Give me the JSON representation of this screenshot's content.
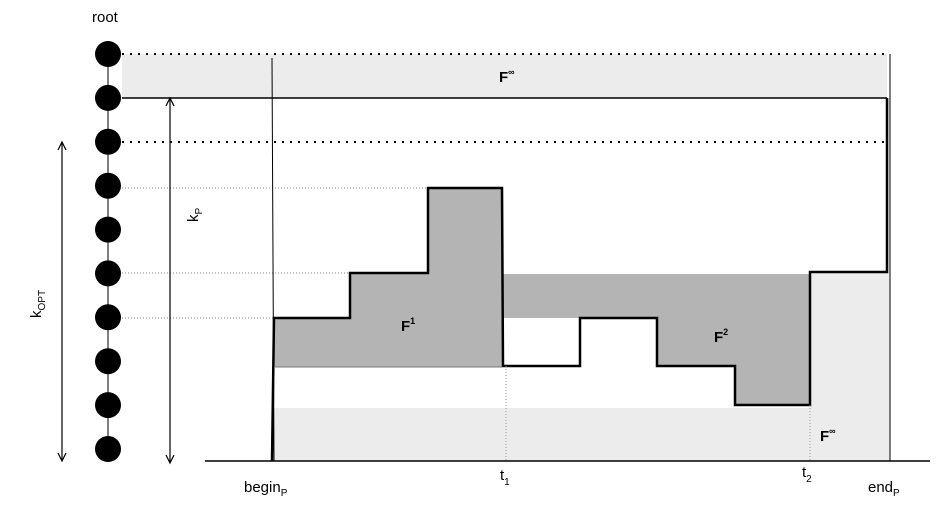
{
  "labels": {
    "root": "root",
    "k": "k",
    "k_sub": "P",
    "k_opt": "k",
    "k_opt_sub": "OPT",
    "F": "F",
    "F_inf_sup": "∞",
    "F1_sup": "1",
    "F2_sup": "2",
    "begin": "begin",
    "begin_sub": "P",
    "t": "t",
    "t1_sub": "1",
    "t2_sub": "2",
    "end": "end",
    "end_sub": "P"
  },
  "colors": {
    "dark_fill": "#b4b4b4",
    "light_fill": "#ececec",
    "node": "#000000",
    "line": "#000000"
  },
  "nodes": {
    "count": 10
  }
}
